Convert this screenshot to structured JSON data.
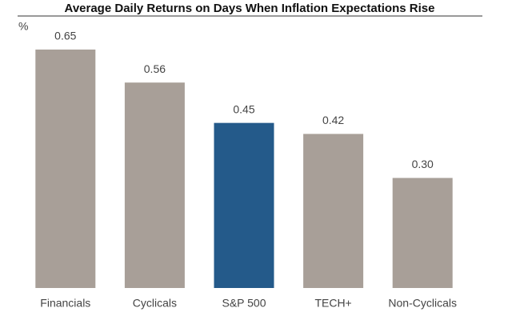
{
  "chart_data": {
    "type": "bar",
    "title": "Average Daily Returns on Days When Inflation Expectations Rise",
    "unit_label": "%",
    "categories": [
      "Financials",
      "Cyclicals",
      "S&P 500",
      "TECH+",
      "Non-Cyclicals"
    ],
    "values": [
      0.65,
      0.56,
      0.45,
      0.42,
      0.3
    ],
    "value_labels": [
      "0.65",
      "0.56",
      "0.45",
      "0.42",
      "0.30"
    ],
    "colors": [
      "#a89f98",
      "#a89f98",
      "#245a8a",
      "#a89f98",
      "#a89f98"
    ],
    "ylim": [
      0,
      0.7
    ]
  }
}
